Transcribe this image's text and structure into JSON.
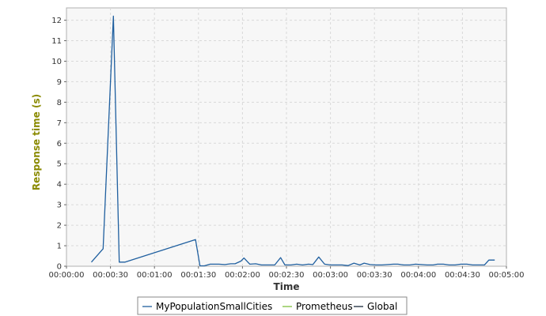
{
  "chart_data": {
    "type": "line",
    "xlabel": "Time",
    "ylabel": "Response time (s)",
    "xlim": [
      0,
      300
    ],
    "ylim": [
      0,
      12.6
    ],
    "grid": true,
    "legend_placement": "bottom-center",
    "x_ticks": [
      {
        "value": 0,
        "label": "00:00:00"
      },
      {
        "value": 30,
        "label": "00:00:30"
      },
      {
        "value": 60,
        "label": "00:01:00"
      },
      {
        "value": 90,
        "label": "00:01:30"
      },
      {
        "value": 120,
        "label": "00:02:00"
      },
      {
        "value": 150,
        "label": "00:02:30"
      },
      {
        "value": 180,
        "label": "00:03:00"
      },
      {
        "value": 210,
        "label": "00:03:30"
      },
      {
        "value": 240,
        "label": "00:04:00"
      },
      {
        "value": 270,
        "label": "00:04:30"
      },
      {
        "value": 300,
        "label": "00:05:00"
      }
    ],
    "y_ticks": [
      0,
      1,
      2,
      3,
      4,
      5,
      6,
      7,
      8,
      9,
      10,
      11,
      12
    ],
    "series": [
      {
        "name": "MyPopulationSmallCities",
        "color": "#1f5f9f",
        "x": [
          17,
          25,
          32,
          36,
          40,
          88,
          91,
          94,
          98,
          102,
          104,
          108,
          112,
          115,
          119,
          121,
          125,
          129,
          133,
          137,
          142,
          146,
          149,
          153,
          157,
          161,
          165,
          168,
          172,
          176,
          180,
          184,
          188,
          192,
          196,
          200,
          203,
          207,
          211,
          215,
          219,
          223,
          226,
          230,
          234,
          238,
          242,
          246,
          250,
          253,
          257,
          261,
          265,
          269,
          273,
          277,
          281,
          285,
          288,
          292
        ],
        "values": [
          0.2,
          0.85,
          12.2,
          0.2,
          0.2,
          1.3,
          0.02,
          0.02,
          0.1,
          0.1,
          0.1,
          0.08,
          0.12,
          0.12,
          0.25,
          0.4,
          0.1,
          0.12,
          0.06,
          0.06,
          0.06,
          0.42,
          0.06,
          0.06,
          0.1,
          0.06,
          0.1,
          0.08,
          0.45,
          0.1,
          0.06,
          0.06,
          0.06,
          0.03,
          0.15,
          0.06,
          0.15,
          0.08,
          0.06,
          0.06,
          0.08,
          0.1,
          0.1,
          0.06,
          0.06,
          0.1,
          0.08,
          0.06,
          0.06,
          0.1,
          0.1,
          0.06,
          0.06,
          0.1,
          0.1,
          0.06,
          0.06,
          0.06,
          0.3,
          0.3
        ]
      }
    ],
    "legend": [
      {
        "name": "MyPopulationSmallCities",
        "color": "#1f5f9f"
      },
      {
        "name": "Prometheus",
        "color": "#7fbf3f"
      },
      {
        "name": "Global",
        "color": "#1a2a3a"
      }
    ],
    "colors": {
      "plot_background": "#f7f7f7",
      "grid": "#d9d9d9",
      "ylabel": "#8a8a00",
      "xlabel": "#333333"
    }
  }
}
